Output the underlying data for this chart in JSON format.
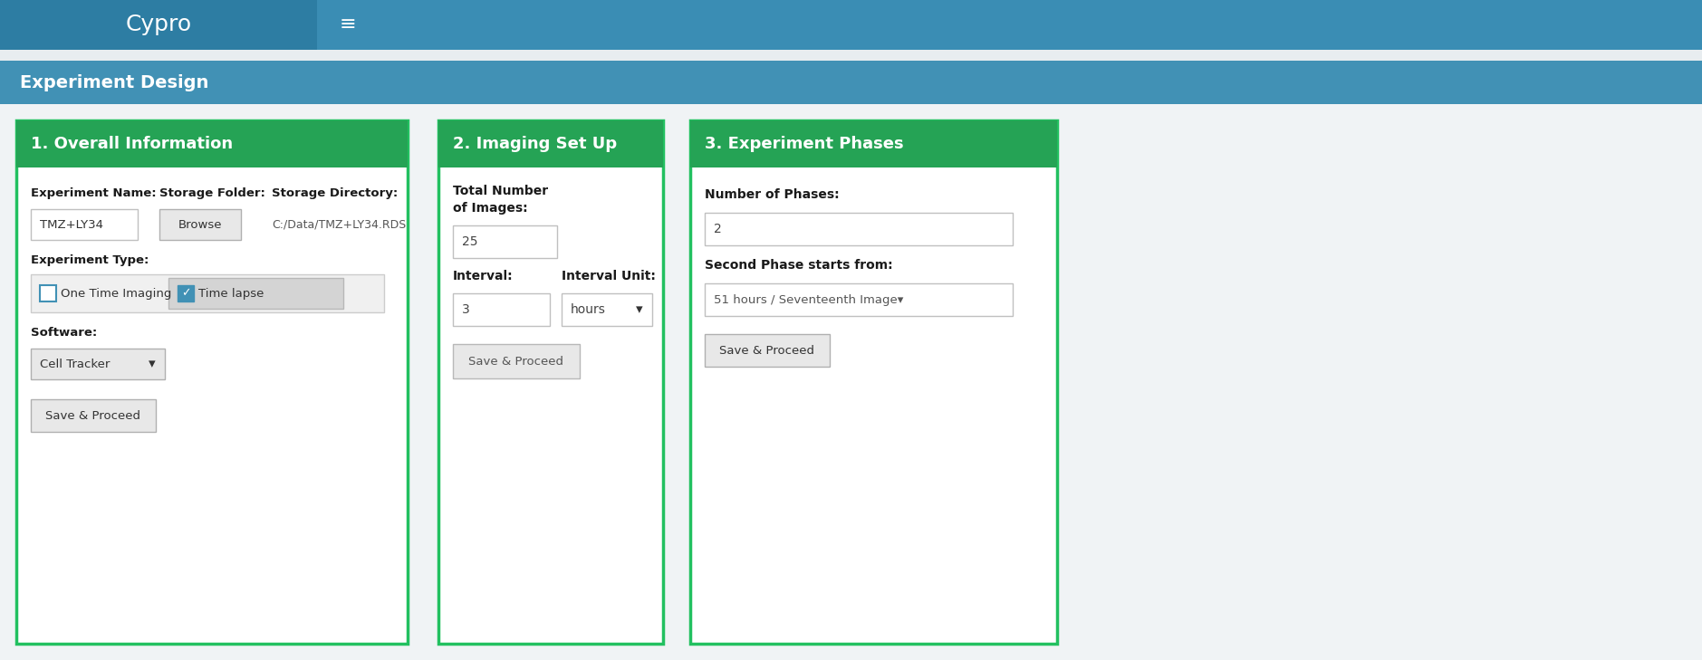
{
  "fig_width": 18.79,
  "fig_height": 7.29,
  "bg_color": "#e8edf0",
  "navbar_color": "#3a8db4",
  "navbar_dark_color": "#2d7da3",
  "experiment_design_bg": "#4191b5",
  "panel_border_color": "#22c060",
  "panel_header_color": "#25a355",
  "navbar_title": "Cypro",
  "navbar_menu_icon": "≡",
  "page_title": "Experiment Design",
  "panel1_title": "1. Overall Information",
  "panel2_title": "2. Imaging Set Up",
  "panel3_title": "3. Experiment Phases",
  "p1_exp_name_label": "Experiment Name:",
  "p1_storage_folder_label": "Storage Folder:",
  "p1_storage_dir_label": "Storage Directory:",
  "p1_exp_name_value": "TMZ+LY34",
  "p1_storage_folder_btn": "Browse",
  "p1_storage_dir_value": "C:/Data/TMZ+LY34.RDS",
  "p1_exp_type_label": "Experiment Type:",
  "p1_checkbox1": "One Time Imaging",
  "p1_checkbox2": "Time lapse",
  "p1_software_label": "Software:",
  "p1_software_value": "Cell Tracker",
  "p1_save_btn": "Save & Proceed",
  "p2_total_label1": "Total Number",
  "p2_total_label2": "of Images:",
  "p2_total_value": "25",
  "p2_interval_label": "Interval:",
  "p2_interval_unit_label": "Interval Unit:",
  "p2_interval_value": "3",
  "p2_interval_unit_value": "hours",
  "p2_save_btn": "Save & Proceed",
  "p3_phases_label": "Number of Phases:",
  "p3_phases_value": "2",
  "p3_second_label": "Second Phase starts from:",
  "p3_second_value": "51 hours / Seventeenth Image▾",
  "p3_save_btn": "Save & Proceed",
  "checkbox_blue": "#4191b5"
}
